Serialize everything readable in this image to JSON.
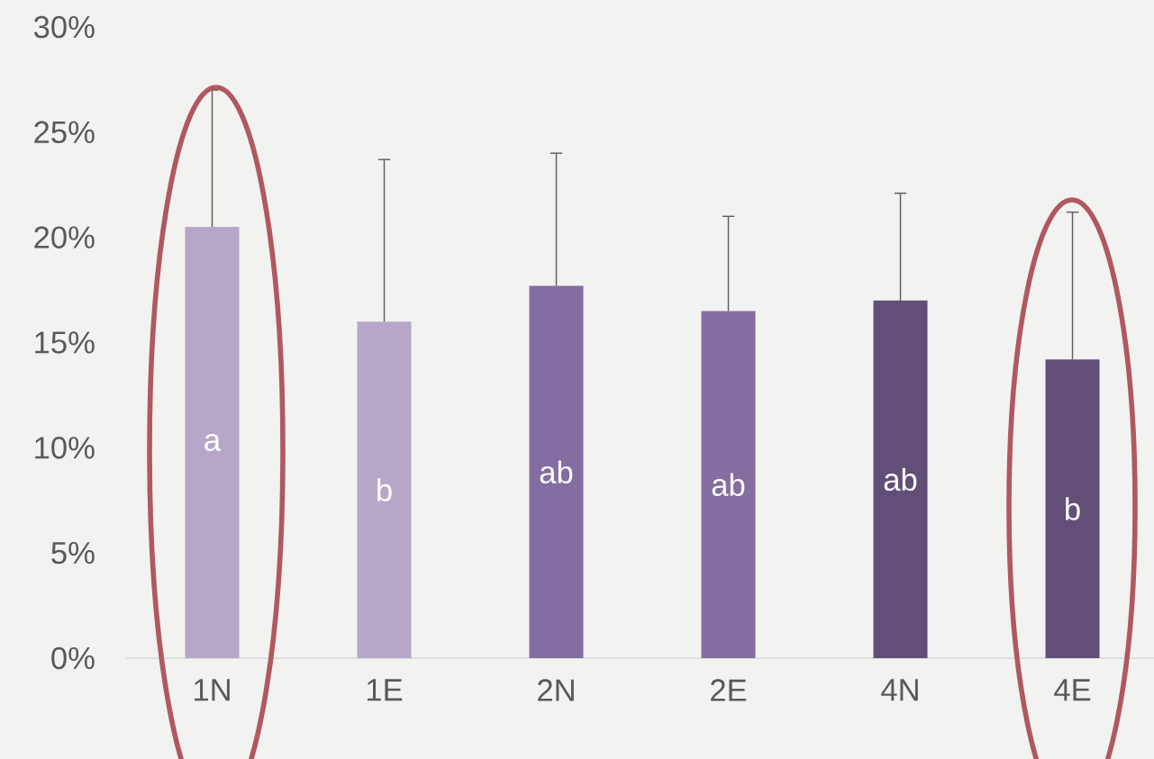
{
  "chart_data": {
    "type": "bar",
    "categories": [
      "1N",
      "1E",
      "2N",
      "2E",
      "4N",
      "4E"
    ],
    "values": [
      20.5,
      16.0,
      17.7,
      16.5,
      17.0,
      14.2
    ],
    "colors": [
      "#b6a7c8",
      "#b6a7c8",
      "#846da0",
      "#846da0",
      "#614f78",
      "#614f78"
    ],
    "errors": [
      [
        20.5,
        27.0
      ],
      [
        16.0,
        23.7
      ],
      [
        17.7,
        24.0
      ],
      [
        16.5,
        21.0
      ],
      [
        17.0,
        22.1
      ],
      [
        14.2,
        21.2
      ]
    ],
    "ylim": [
      0,
      30
    ],
    "yticks": [
      {
        "value": 0,
        "label": "0%"
      },
      {
        "value": 5,
        "label": "5%"
      },
      {
        "value": 10,
        "label": "10%"
      },
      {
        "value": 15,
        "label": "15%"
      },
      {
        "value": 20,
        "label": "20%"
      },
      {
        "value": 25,
        "label": "25%"
      },
      {
        "value": 30,
        "label": "30%"
      }
    ],
    "annotations": [
      "a",
      "b",
      "ab",
      "ab",
      "ab",
      "b"
    ]
  }
}
